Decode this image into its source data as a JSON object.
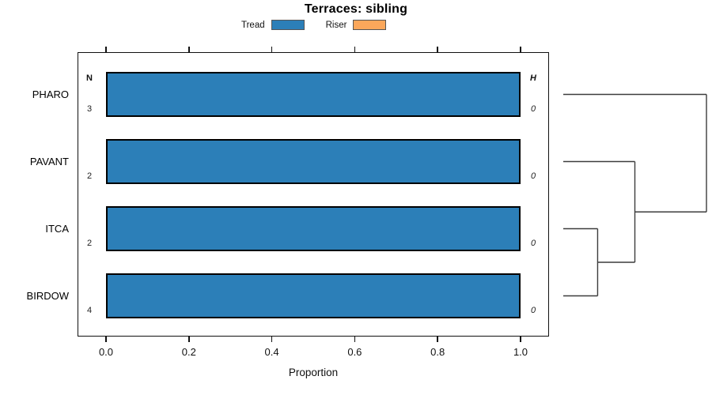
{
  "title": "Terraces: sibling",
  "legend": {
    "items": [
      {
        "label": "Tread",
        "color": "#2C7FB8"
      },
      {
        "label": "Riser",
        "color": "#FBA75B"
      }
    ]
  },
  "chart_data": {
    "type": "bar",
    "orientation": "horizontal",
    "stacked": true,
    "title": "Terraces: sibling",
    "xlabel": "Proportion",
    "xlim": [
      0.0,
      1.0
    ],
    "x_ticks": [
      0.0,
      0.2,
      0.4,
      0.6,
      0.8,
      1.0
    ],
    "x_tick_labels": [
      "0.0",
      "0.2",
      "0.4",
      "0.6",
      "0.8",
      "1.0"
    ],
    "grid": false,
    "legend_position": "top",
    "categories": [
      "PHARO",
      "PAVANT",
      "ITCA",
      "BIRDOW"
    ],
    "series": [
      {
        "name": "Tread",
        "color": "#2C7FB8",
        "values": [
          1.0,
          1.0,
          1.0,
          1.0
        ]
      },
      {
        "name": "Riser",
        "color": "#FBA75B",
        "values": [
          0.0,
          0.0,
          0.0,
          0.0
        ]
      }
    ],
    "side_columns": {
      "n": {
        "header": "N",
        "values": [
          "3",
          "2",
          "2",
          "4"
        ]
      },
      "h": {
        "header": "H",
        "values": [
          "0",
          "0",
          "0",
          "0"
        ]
      }
    },
    "dendrogram": {
      "side": "right",
      "leaves": [
        "PHARO",
        "PAVANT",
        "ITCA",
        "BIRDOW"
      ],
      "merges": [
        {
          "children": [
            "ITCA",
            "BIRDOW"
          ],
          "height": 0.24
        },
        {
          "children": [
            "merge0",
            "PAVANT"
          ],
          "height": 0.5
        },
        {
          "children": [
            "merge1",
            "PHARO"
          ],
          "height": 1.0
        }
      ],
      "line_color": "#3c3c3c"
    },
    "bar_border_color": "#000000"
  }
}
